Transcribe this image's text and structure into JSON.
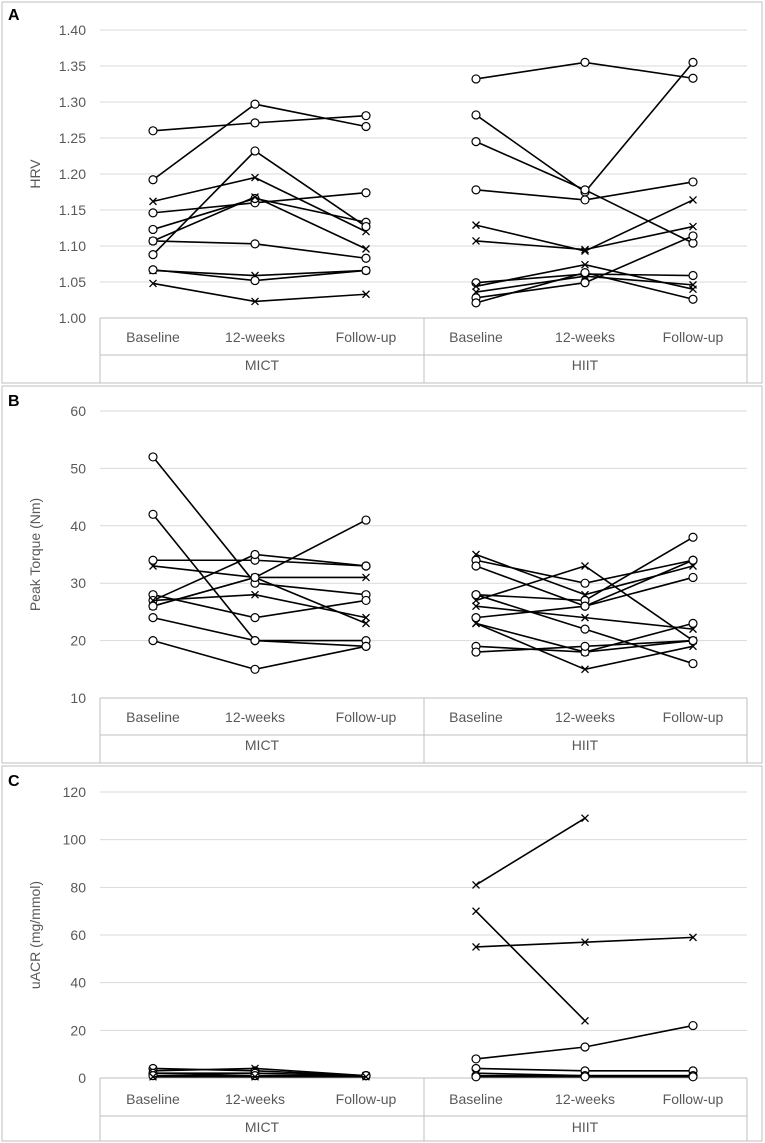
{
  "chart_data": [
    {
      "type": "line",
      "panel": "A",
      "ylabel": "HRV",
      "ylim": [
        1.0,
        1.4
      ],
      "yticks": [
        1.0,
        1.05,
        1.1,
        1.15,
        1.2,
        1.25,
        1.3,
        1.35,
        1.4
      ],
      "ytick_labels": [
        "1.00",
        "1.05",
        "1.10",
        "1.15",
        "1.20",
        "1.25",
        "1.30",
        "1.35",
        "1.40"
      ],
      "categories": [
        "Baseline",
        "12-weeks",
        "Follow-up"
      ],
      "groups": [
        {
          "name": "MICT",
          "series": [
            {
              "marker": "circle",
              "values": [
                1.26,
                1.271,
                1.281
              ]
            },
            {
              "marker": "circle",
              "values": [
                1.192,
                1.297,
                1.266
              ]
            },
            {
              "marker": "cross",
              "values": [
                1.162,
                1.195,
                1.12
              ]
            },
            {
              "marker": "circle",
              "values": [
                1.146,
                1.16,
                1.174
              ]
            },
            {
              "marker": "circle",
              "values": [
                1.123,
                1.166,
                1.133
              ]
            },
            {
              "marker": "cross",
              "values": [
                1.107,
                1.168,
                1.096
              ]
            },
            {
              "marker": "circle",
              "values": [
                1.088,
                1.232,
                1.127
              ]
            },
            {
              "marker": "circle",
              "values": [
                1.107,
                1.103,
                1.083
              ]
            },
            {
              "marker": "cross",
              "values": [
                1.066,
                1.059,
                1.066
              ]
            },
            {
              "marker": "circle",
              "values": [
                1.067,
                1.052,
                1.066
              ]
            },
            {
              "marker": "cross",
              "values": [
                1.048,
                1.023,
                1.033
              ]
            }
          ]
        },
        {
          "name": "HIIT",
          "series": [
            {
              "marker": "circle",
              "values": [
                1.332,
                1.355,
                1.333
              ]
            },
            {
              "marker": "circle",
              "values": [
                1.282,
                1.175,
                1.355
              ]
            },
            {
              "marker": "circle",
              "values": [
                1.245,
                1.178,
                1.104
              ]
            },
            {
              "marker": "circle",
              "values": [
                1.178,
                1.164,
                1.189
              ]
            },
            {
              "marker": "cross",
              "values": [
                1.129,
                1.093,
                1.164
              ]
            },
            {
              "marker": "cross",
              "values": [
                1.107,
                1.095,
                1.127
              ]
            },
            {
              "marker": "circle",
              "values": [
                1.049,
                1.061,
                1.059
              ]
            },
            {
              "marker": "cross",
              "values": [
                1.044,
                1.074,
                1.04
              ]
            },
            {
              "marker": "cross",
              "values": [
                1.036,
                1.058,
                1.046
              ]
            },
            {
              "marker": "circle",
              "values": [
                1.028,
                1.049,
                1.114
              ]
            },
            {
              "marker": "circle",
              "values": [
                1.021,
                1.063,
                1.026
              ]
            }
          ]
        }
      ]
    },
    {
      "type": "line",
      "panel": "B",
      "ylabel": "Peak Torque (Nm)",
      "ylim": [
        10,
        60
      ],
      "yticks": [
        10,
        20,
        30,
        40,
        50,
        60
      ],
      "ytick_labels": [
        "10",
        "20",
        "30",
        "40",
        "50",
        "60"
      ],
      "categories": [
        "Baseline",
        "12-weeks",
        "Follow-up"
      ],
      "groups": [
        {
          "name": "MICT",
          "series": [
            {
              "marker": "circle",
              "values": [
                52,
                30,
                28
              ]
            },
            {
              "marker": "circle",
              "values": [
                42,
                20,
                20
              ]
            },
            {
              "marker": "circle",
              "values": [
                34,
                34,
                33
              ]
            },
            {
              "marker": "cross",
              "values": [
                33,
                31,
                31
              ]
            },
            {
              "marker": "circle",
              "values": [
                28,
                24,
                27
              ]
            },
            {
              "marker": "circle",
              "values": [
                27,
                35,
                33
              ]
            },
            {
              "marker": "cross",
              "values": [
                26,
                31,
                23
              ]
            },
            {
              "marker": "circle",
              "values": [
                26,
                31,
                41
              ]
            },
            {
              "marker": "cross",
              "values": [
                27,
                28,
                24
              ]
            },
            {
              "marker": "circle",
              "values": [
                24,
                20,
                19
              ]
            },
            {
              "marker": "circle",
              "values": [
                20,
                15,
                19
              ]
            }
          ]
        },
        {
          "name": "HIIT",
          "series": [
            {
              "marker": "cross",
              "values": [
                35,
                28,
                33
              ]
            },
            {
              "marker": "circle",
              "values": [
                34,
                30,
                34
              ]
            },
            {
              "marker": "circle",
              "values": [
                33,
                26,
                34
              ]
            },
            {
              "marker": "circle",
              "values": [
                28,
                27,
                38
              ]
            },
            {
              "marker": "circle",
              "values": [
                28,
                22,
                16
              ]
            },
            {
              "marker": "cross",
              "values": [
                27,
                33,
                20
              ]
            },
            {
              "marker": "cross",
              "values": [
                26,
                24,
                22
              ]
            },
            {
              "marker": "circle",
              "values": [
                24,
                26,
                31
              ]
            },
            {
              "marker": "cross",
              "values": [
                23,
                18,
                20
              ]
            },
            {
              "marker": "cross",
              "values": [
                23,
                15,
                19
              ]
            },
            {
              "marker": "circle",
              "values": [
                19,
                18,
                23
              ]
            },
            {
              "marker": "circle",
              "values": [
                18,
                19,
                20
              ]
            }
          ]
        }
      ]
    },
    {
      "type": "line",
      "panel": "C",
      "ylabel": "uACR (mg/mmol)",
      "ylim": [
        0,
        120
      ],
      "yticks": [
        0,
        20,
        40,
        60,
        80,
        100,
        120
      ],
      "ytick_labels": [
        "0",
        "20",
        "40",
        "60",
        "80",
        "100",
        "120"
      ],
      "categories": [
        "Baseline",
        "12-weeks",
        "Follow-up"
      ],
      "groups": [
        {
          "name": "MICT",
          "series": [
            {
              "marker": "circle",
              "values": [
                4,
                3,
                1
              ]
            },
            {
              "marker": "cross",
              "values": [
                3,
                4,
                1
              ]
            },
            {
              "marker": "circle",
              "values": [
                2,
                2,
                1
              ]
            },
            {
              "marker": "cross",
              "values": [
                2,
                1,
                1
              ]
            },
            {
              "marker": "circle",
              "values": [
                1,
                1,
                1
              ]
            },
            {
              "marker": "cross",
              "values": [
                0.5,
                0.5,
                0.5
              ]
            }
          ]
        },
        {
          "name": "HIIT",
          "series": [
            {
              "marker": "cross",
              "values": [
                81,
                109,
                null
              ]
            },
            {
              "marker": "cross",
              "values": [
                70,
                24,
                null
              ]
            },
            {
              "marker": "cross",
              "values": [
                55,
                57,
                59
              ]
            },
            {
              "marker": "circle",
              "values": [
                8,
                13,
                22
              ]
            },
            {
              "marker": "circle",
              "values": [
                4,
                3,
                3
              ]
            },
            {
              "marker": "cross",
              "values": [
                2,
                1,
                1
              ]
            },
            {
              "marker": "circle",
              "values": [
                1,
                1,
                1
              ]
            },
            {
              "marker": "circle",
              "values": [
                0.5,
                0.5,
                0.5
              ]
            }
          ]
        }
      ]
    }
  ]
}
